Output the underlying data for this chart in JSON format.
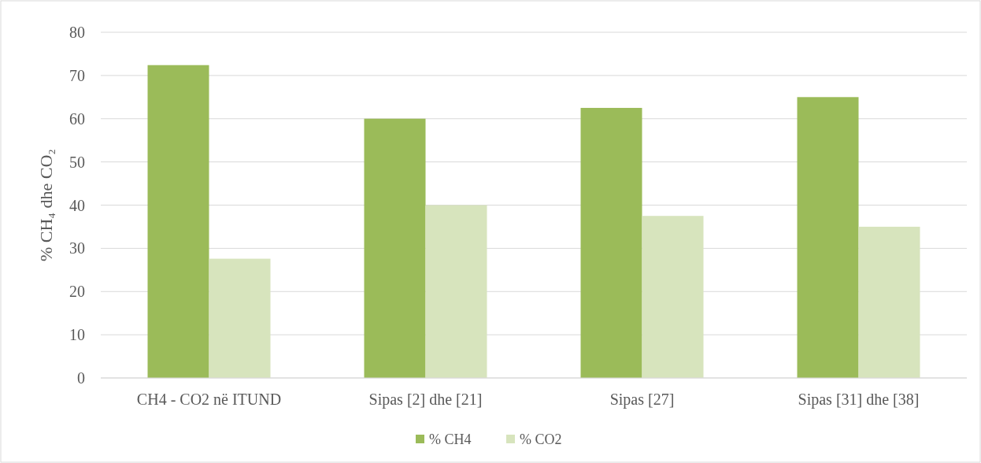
{
  "chart_data": {
    "type": "bar",
    "ylabel": "% CH₄ dhe CO₂",
    "categories": [
      "CH4 - CO2 në ITUND",
      "Sipas [2] dhe [21]",
      "Sipas [27]",
      "Sipas [31] dhe [38]"
    ],
    "series": [
      {
        "name": "% CH4",
        "color": "#9bbb59",
        "values": [
          72.4,
          60,
          62.5,
          65
        ]
      },
      {
        "name": "% CO2",
        "color": "#d7e4bd",
        "values": [
          27.6,
          40,
          37.5,
          35
        ]
      }
    ],
    "ylim": [
      0,
      80
    ],
    "yticks": [
      0,
      10,
      20,
      30,
      40,
      50,
      60,
      70,
      80
    ],
    "grid": "y",
    "legend": "bottom"
  }
}
